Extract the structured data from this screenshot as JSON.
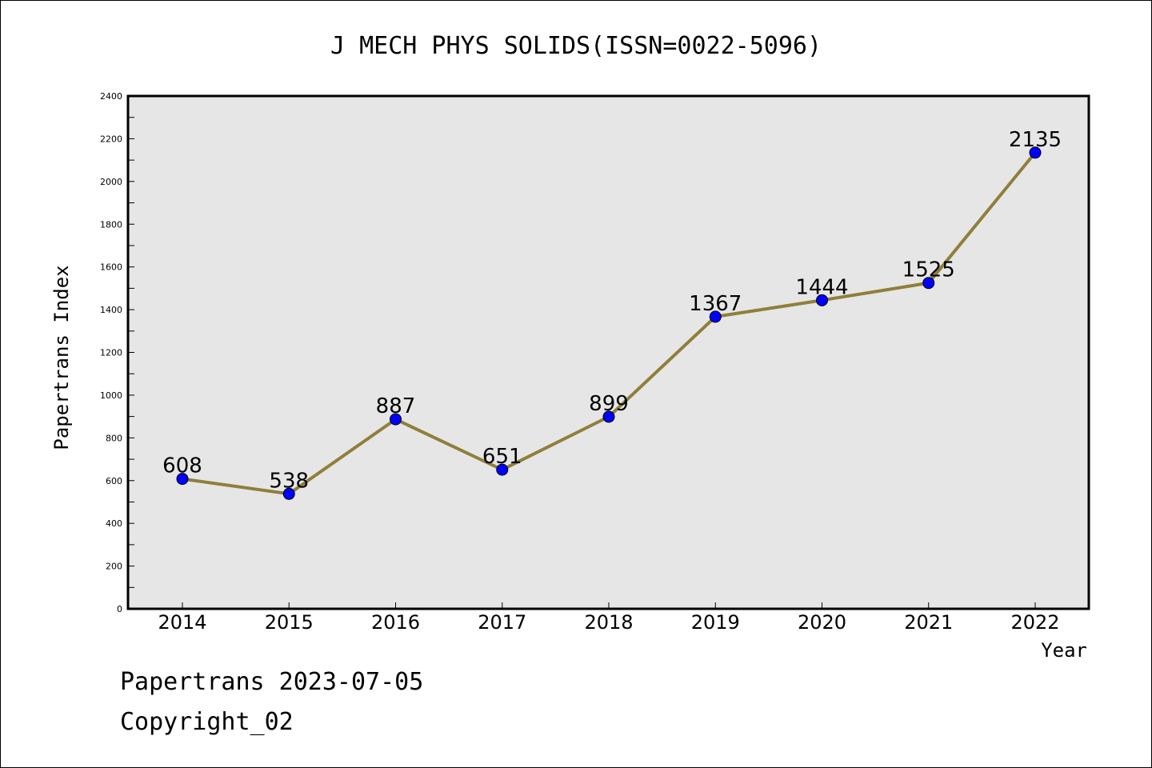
{
  "chart_data": {
    "type": "line",
    "title": "J MECH PHYS SOLIDS(ISSN=0022-5096)",
    "xlabel": "Year",
    "ylabel": "Papertrans Index",
    "categories": [
      "2014",
      "2015",
      "2016",
      "2017",
      "2018",
      "2019",
      "2020",
      "2021",
      "2022"
    ],
    "values": [
      608,
      538,
      887,
      651,
      899,
      1367,
      1444,
      1525,
      2135
    ],
    "ylim": [
      0,
      2400
    ],
    "yticks": [
      0,
      200,
      400,
      600,
      800,
      1000,
      1200,
      1400,
      1600,
      1800,
      2000,
      2200,
      2400
    ],
    "grid": false,
    "line_color": "#8f7f3a",
    "marker_color": "#0000ff",
    "plot_background": "#e6e6e6"
  },
  "footer": {
    "line1": "Papertrans 2023-07-05",
    "line2": "Copyright_02"
  }
}
